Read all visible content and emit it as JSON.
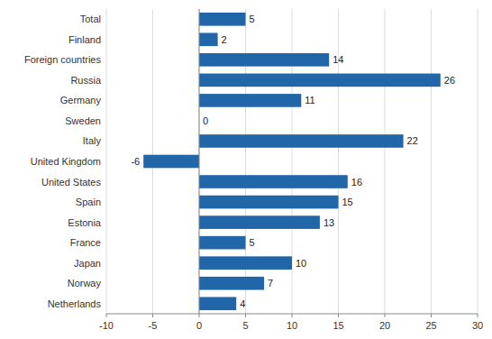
{
  "chart_data": {
    "type": "bar",
    "orientation": "horizontal",
    "categories": [
      "Netherlands",
      "Norway",
      "Japan",
      "France",
      "Estonia",
      "Spain",
      "United States",
      "United Kingdom",
      "Italy",
      "Sweden",
      "Germany",
      "Russia",
      "Foreign countries",
      "Finland",
      "Total"
    ],
    "values": [
      4,
      7,
      10,
      5,
      13,
      15,
      16,
      -6,
      22,
      0,
      11,
      26,
      14,
      2,
      5
    ],
    "color": "#2166A8",
    "xlim": [
      -10,
      30
    ],
    "xticks": [
      -10,
      -5,
      0,
      5,
      10,
      15,
      20,
      25,
      30
    ],
    "grid": true,
    "data_labels": true
  }
}
